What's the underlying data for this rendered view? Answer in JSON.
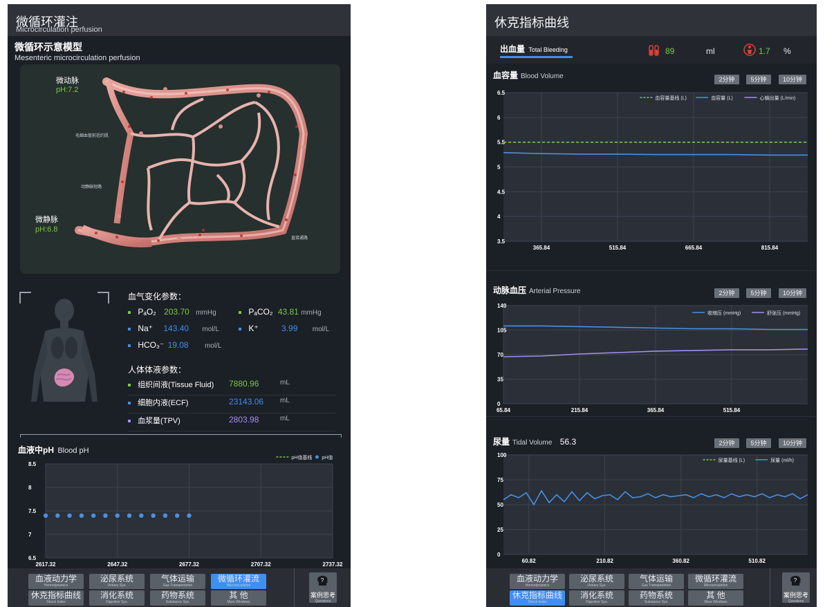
{
  "left": {
    "title_zh": "微循环灌注",
    "title_en": "Microcirculation perfusion",
    "model": {
      "title_zh": "微循环示意模型",
      "title_en": "Mesenteric microcirculation perfusion",
      "arteriole_label": "微动脉",
      "arteriole_ph": "pH:7.2",
      "venule_label": "微静脉",
      "venule_ph": "pH:6.8",
      "tag_capillary_sphincter": "毛细血管前括约肌",
      "tag_av_shunt": "动静脉短路",
      "tag_thoroughfare": "直接通路"
    },
    "gas": {
      "title": "血气变化参数：",
      "pao2_label": "PₐO₂",
      "pao2_value": "203.70",
      "pao2_unit": "mmHg",
      "paco2_label": "PₐCO₂",
      "paco2_value": "43.81",
      "paco2_unit": "mmHg",
      "na_label": "Na⁺",
      "na_value": "143.40",
      "na_unit": "mol/L",
      "k_label": "K⁺",
      "k_value": "3.99",
      "k_unit": "mol/L",
      "hco3_label": "HCO₃⁻",
      "hco3_value": "19.08",
      "hco3_unit": "mol/L"
    },
    "fluid": {
      "title": "人体体液参数：",
      "rows": [
        {
          "label": "组织间液(Tissue Fluid)",
          "value": "7880.96",
          "unit": "mL"
        },
        {
          "label": "细胞内液(ECF)",
          "value": "23143.06",
          "unit": "mL"
        },
        {
          "label": "血浆量(TPV)",
          "value": "2803.98",
          "unit": "mL"
        }
      ]
    },
    "ph_chart_title_zh": "血液中pH",
    "ph_chart_title_en": "Blood pH"
  },
  "right": {
    "title_zh": "休克指标曲线",
    "bleeding_tab_zh": "出血量",
    "bleeding_tab_en": "Total Bleeding",
    "bleeding_value": "89",
    "bleeding_unit": "ml",
    "bleeding_pct": "1.7",
    "bleeding_pct_unit": "%",
    "bv_title_zh": "血容量",
    "bv_title_en": "Blood Volume",
    "ap_title_zh": "动脉血压",
    "ap_title_en": "Arterial Pressure",
    "tv_title_zh": "尿量",
    "tv_title_en": "Tidal Volume",
    "tv_value": "56.3",
    "time_buttons": [
      "2分钟",
      "5分钟",
      "10分钟"
    ]
  },
  "nav": {
    "buttons": [
      {
        "zh": "血液动力学",
        "en": "Hemodynamics"
      },
      {
        "zh": "泌尿系统",
        "en": "Urinary Sys."
      },
      {
        "zh": "气体运输",
        "en": "Gas Transportation"
      },
      {
        "zh": "微循环灌流",
        "en": "Microcirculation"
      },
      {
        "zh": "休克指标曲线",
        "en": "Shock Index"
      },
      {
        "zh": "消化系统",
        "en": "Digestive Sys."
      },
      {
        "zh": "药物系统",
        "en": "Substance Sys."
      },
      {
        "zh": "其 他",
        "en": "More Windows"
      }
    ],
    "case_zh": "案例思考",
    "case_en": "Questions"
  },
  "chart_data": [
    {
      "type": "scatter",
      "title": "血液中pH Blood pH",
      "x_ticks": [
        "2617.32",
        "2647.32",
        "2677.32",
        "2707.32",
        "2737.32"
      ],
      "xlim": [
        2617.32,
        2737.32
      ],
      "ylim": [
        6.5,
        8.5
      ],
      "y_ticks": [
        "6.5",
        "7",
        "7.5",
        "8",
        "8.5"
      ],
      "legend": [
        "pH值基线",
        "pH值"
      ],
      "legend_position": "top-right",
      "grid": true,
      "series": [
        {
          "name": "pH值",
          "color": "#4a90e2",
          "x": [
            2617.32,
            2622.32,
            2627.32,
            2632.32,
            2637.32,
            2642.32,
            2647.32,
            2652.32,
            2657.32,
            2662.32,
            2667.32,
            2672.32,
            2677.32
          ],
          "y": [
            7.4,
            7.4,
            7.4,
            7.4,
            7.4,
            7.4,
            7.4,
            7.4,
            7.4,
            7.4,
            7.4,
            7.4,
            7.4
          ]
        }
      ]
    },
    {
      "type": "line",
      "title": "血容量 Blood Volume",
      "x_ticks": [
        "365.84",
        "515.84",
        "665.84",
        "815.84"
      ],
      "xlim": [
        290.84,
        890.84
      ],
      "ylim": [
        3.5,
        6.5
      ],
      "y_ticks": [
        "3.5",
        "4",
        "4.5",
        "5",
        "5.5",
        "6",
        "6.5"
      ],
      "legend": [
        "血容量基线 (L)",
        "血容量 (L)",
        "心输出量 (L/min)"
      ],
      "legend_position": "top-right",
      "grid": true,
      "series": [
        {
          "name": "血容量基线 (L)",
          "color": "#7ac943",
          "dashed": true,
          "x": [
            290.84,
            890.84
          ],
          "y": [
            5.5,
            5.5
          ]
        },
        {
          "name": "血容量 (L)",
          "color": "#4a90e2",
          "x": [
            290.84,
            365.84,
            440.84,
            515.84,
            590.84,
            665.84,
            740.84,
            815.84,
            890.84
          ],
          "y": [
            5.29,
            5.27,
            5.26,
            5.26,
            5.25,
            5.25,
            5.25,
            5.24,
            5.24
          ]
        }
      ]
    },
    {
      "type": "line",
      "title": "动脉血压 Arterial Pressure",
      "x_ticks": [
        "65.84",
        "215.84",
        "365.84",
        "515.84"
      ],
      "xlim": [
        65.84,
        665.84
      ],
      "ylim": [
        0,
        140
      ],
      "y_ticks": [
        "0",
        "35",
        "70",
        "105",
        "140"
      ],
      "legend": [
        "收缩压 (mmHg)",
        "舒张压 (mmHg)"
      ],
      "legend_position": "top-right",
      "grid": true,
      "series": [
        {
          "name": "收缩压 (mmHg)",
          "color": "#4a90e2",
          "x": [
            65.84,
            140.84,
            215.84,
            290.84,
            365.84,
            440.84,
            515.84,
            590.84,
            665.84
          ],
          "y": [
            111,
            111,
            110,
            109,
            108,
            107,
            107,
            106,
            106
          ]
        },
        {
          "name": "舒张压 (mmHg)",
          "color": "#a58df0",
          "x": [
            65.84,
            140.84,
            215.84,
            290.84,
            365.84,
            440.84,
            515.84,
            590.84,
            665.84
          ],
          "y": [
            67,
            68,
            71,
            73,
            75,
            76,
            77,
            77,
            78
          ]
        }
      ]
    },
    {
      "type": "line",
      "title": "尿量 Tidal Volume",
      "x_ticks": [
        "60.82",
        "210.82",
        "360.82",
        "510.82"
      ],
      "xlim": [
        10.82,
        610.82
      ],
      "ylim": [
        0,
        100
      ],
      "y_ticks": [
        "0",
        "25",
        "50",
        "75",
        "100"
      ],
      "legend": [
        "尿量基线 (L)",
        "尿量 (ml/h)"
      ],
      "legend_position": "top-right",
      "grid": true,
      "series": [
        {
          "name": "尿量 (ml/h)",
          "color": "#4a90e2",
          "x": [
            10.82,
            25.82,
            40.82,
            55.82,
            70.82,
            85.82,
            100.82,
            115.82,
            130.82,
            145.82,
            160.82,
            175.82,
            190.82,
            205.82,
            220.82,
            235.82,
            250.82,
            265.82,
            280.82,
            295.82,
            310.82,
            325.82,
            340.82,
            355.82,
            370.82,
            385.82,
            400.82,
            415.82,
            430.82,
            445.82,
            460.82,
            475.82,
            490.82,
            505.82,
            520.82,
            535.82,
            550.82,
            565.82,
            580.82,
            595.82,
            610.82
          ],
          "y": [
            55,
            60,
            57,
            62,
            50,
            64,
            52,
            60,
            53,
            63,
            54,
            62,
            56,
            59,
            60,
            55,
            63,
            57,
            58,
            61,
            57,
            60,
            58,
            59,
            60,
            57,
            61,
            58,
            60,
            57,
            61,
            58,
            60,
            58,
            61,
            57,
            60,
            58,
            61,
            56,
            60
          ]
        }
      ]
    }
  ]
}
